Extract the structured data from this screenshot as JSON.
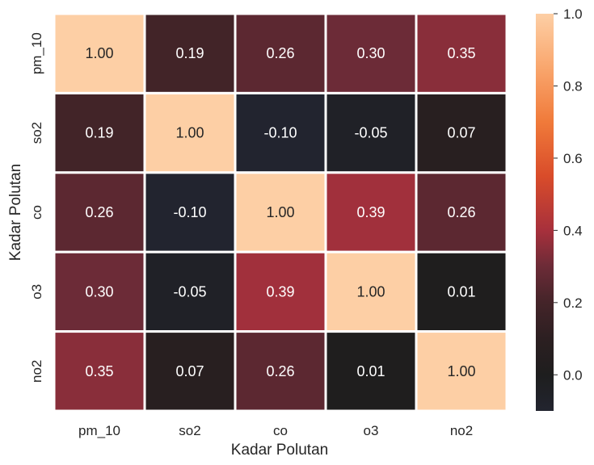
{
  "chart_data": {
    "type": "heatmap",
    "title": "",
    "xlabel": "Kadar Polutan",
    "ylabel": "Kadar Polutan",
    "x_categories": [
      "pm_10",
      "so2",
      "co",
      "o3",
      "no2"
    ],
    "y_categories": [
      "pm_10",
      "so2",
      "co",
      "o3",
      "no2"
    ],
    "values": [
      [
        1.0,
        0.19,
        0.26,
        0.3,
        0.35
      ],
      [
        0.19,
        1.0,
        -0.1,
        -0.05,
        0.07
      ],
      [
        0.26,
        -0.1,
        1.0,
        0.39,
        0.26
      ],
      [
        0.3,
        -0.05,
        0.39,
        1.0,
        0.01
      ],
      [
        0.35,
        0.07,
        0.26,
        0.01,
        1.0
      ]
    ],
    "cell_labels": [
      [
        "1.00",
        "0.19",
        "0.26",
        "0.30",
        "0.35"
      ],
      [
        "0.19",
        "1.00",
        "-0.10",
        "-0.05",
        "0.07"
      ],
      [
        "0.26",
        "-0.10",
        "1.00",
        "0.39",
        "0.26"
      ],
      [
        "0.30",
        "-0.05",
        "0.39",
        "1.00",
        "0.01"
      ],
      [
        "0.35",
        "0.07",
        "0.26",
        "0.01",
        "1.00"
      ]
    ],
    "colorbar": {
      "range": [
        -0.1,
        1.0
      ],
      "center": 0.0,
      "ticks": [
        0.0,
        0.2,
        0.4,
        0.6,
        0.8,
        1.0
      ],
      "tick_labels": [
        "0.0",
        "0.2",
        "0.4",
        "0.6",
        "0.8",
        "1.0"
      ]
    },
    "colors": {
      "low": "#22242f",
      "center": "#1e1e1e",
      "high": "#fdcfa5",
      "cell_border": "#ffffff",
      "text_dark_bg": "#ffffff",
      "text_light_bg": "#262626"
    }
  }
}
